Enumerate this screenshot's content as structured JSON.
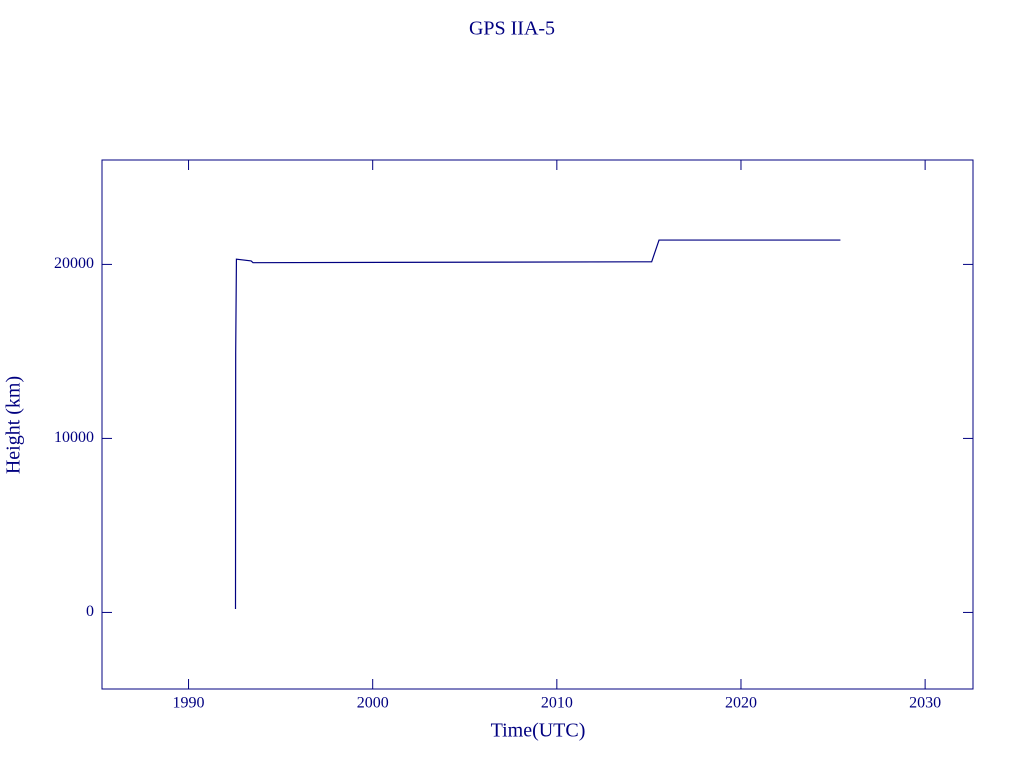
{
  "chart_data": {
    "type": "line",
    "title": "GPS IIA-5",
    "x_label": "Time(UTC)",
    "y_label": "Height (km)",
    "series": [
      {
        "name": "GPS IIA-5",
        "color": "#000080",
        "x": [
          1992.55,
          1992.56,
          1992.6,
          1993.4,
          1993.5,
          2015.15,
          2015.55,
          2025.4
        ],
        "values": [
          200,
          14900,
          20300,
          20200,
          20100,
          20150,
          21400,
          21400
        ]
      }
    ],
    "xlim": [
      1985.3,
      2032.6
    ],
    "xticks": [
      1990,
      2000,
      2010,
      2020,
      2030
    ],
    "ylim": [
      -4400,
      26000
    ],
    "yticks": [
      0,
      10000,
      20000
    ],
    "axis_color": "#000080"
  }
}
